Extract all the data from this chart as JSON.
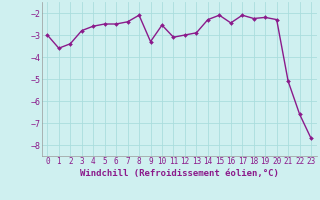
{
  "x": [
    0,
    1,
    2,
    3,
    4,
    5,
    6,
    7,
    8,
    9,
    10,
    11,
    12,
    13,
    14,
    15,
    16,
    17,
    18,
    19,
    20,
    21,
    22,
    23
  ],
  "y": [
    -3.0,
    -3.6,
    -3.4,
    -2.8,
    -2.6,
    -2.5,
    -2.5,
    -2.4,
    -2.1,
    -3.3,
    -2.55,
    -3.1,
    -3.0,
    -2.9,
    -2.3,
    -2.1,
    -2.45,
    -2.1,
    -2.25,
    -2.2,
    -2.3,
    -5.1,
    -6.6,
    -7.7
  ],
  "line_color": "#8B1A8B",
  "marker": "D",
  "marker_size": 2.0,
  "bg_color": "#cff0f0",
  "grid_color": "#aadddd",
  "xlabel": "Windchill (Refroidissement éolien,°C)",
  "ylim": [
    -8.5,
    -1.5
  ],
  "xlim": [
    -0.5,
    23.5
  ],
  "yticks": [
    -8,
    -7,
    -6,
    -5,
    -4,
    -3,
    -2
  ],
  "xtick_labels": [
    "0",
    "1",
    "2",
    "3",
    "4",
    "5",
    "6",
    "7",
    "8",
    "9",
    "10",
    "11",
    "12",
    "13",
    "14",
    "15",
    "16",
    "17",
    "18",
    "19",
    "20",
    "21",
    "22",
    "23"
  ],
  "tick_fontsize": 5.5,
  "label_fontsize": 6.5,
  "line_width": 1.0
}
